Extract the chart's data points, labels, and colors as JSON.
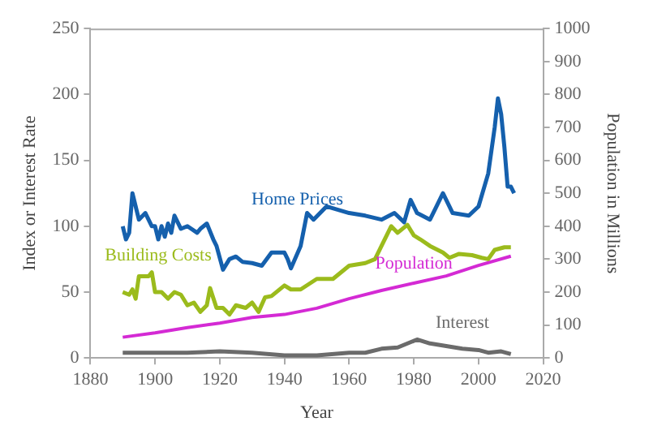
{
  "chart_data": {
    "type": "line",
    "xlabel": "Year",
    "ylabel": "Index or Interest Rate",
    "y2label": "Population in Millions",
    "xlim": [
      1880,
      2020
    ],
    "xticks": [
      1880,
      1900,
      1920,
      1940,
      1960,
      1980,
      2000,
      2020
    ],
    "ylim": [
      0,
      250
    ],
    "yticks": [
      0,
      50,
      100,
      150,
      200,
      250
    ],
    "y2lim": [
      0,
      1000
    ],
    "y2ticks": [
      0,
      100,
      200,
      300,
      400,
      500,
      600,
      700,
      800,
      900,
      1000
    ],
    "grid": false,
    "legend": false,
    "marker": "none",
    "line_style": "solid",
    "series": [
      {
        "name": "Home Prices",
        "color": "#1560ad",
        "x": [
          1890,
          1891,
          1892,
          1893,
          1894,
          1895,
          1897,
          1899,
          1900,
          1901,
          1902,
          1903,
          1904,
          1905,
          1906,
          1908,
          1910,
          1913,
          1914,
          1916,
          1918,
          1919,
          1921,
          1923,
          1925,
          1927,
          1930,
          1933,
          1936,
          1940,
          1941,
          1942,
          1945,
          1947,
          1949,
          1953,
          1960,
          1965,
          1970,
          1974,
          1977,
          1979,
          1981,
          1985,
          1989,
          1992,
          1997,
          2000,
          2003,
          2005,
          2006,
          2007,
          2008,
          2009,
          2010,
          2011
        ],
        "values": [
          100,
          90,
          95,
          125,
          115,
          105,
          110,
          100,
          100,
          90,
          100,
          92,
          102,
          95,
          108,
          98,
          100,
          95,
          98,
          102,
          90,
          85,
          67,
          75,
          77,
          73,
          72,
          70,
          80,
          80,
          75,
          68,
          85,
          110,
          105,
          115,
          110,
          108,
          105,
          110,
          103,
          120,
          110,
          105,
          125,
          110,
          108,
          115,
          140,
          175,
          197,
          185,
          160,
          130,
          130,
          125
        ]
      },
      {
        "name": "Building Costs",
        "color": "#9bbb1c",
        "x": [
          1890,
          1892,
          1893,
          1894,
          1895,
          1898,
          1899,
          1900,
          1902,
          1904,
          1906,
          1908,
          1910,
          1912,
          1914,
          1916,
          1917,
          1919,
          1921,
          1923,
          1925,
          1928,
          1930,
          1932,
          1934,
          1936,
          1940,
          1942,
          1945,
          1950,
          1955,
          1960,
          1965,
          1968,
          1970,
          1973,
          1975,
          1978,
          1980,
          1982,
          1985,
          1989,
          1991,
          1994,
          1998,
          2001,
          2003,
          2005,
          2008,
          2010
        ],
        "values": [
          50,
          48,
          52,
          45,
          62,
          62,
          65,
          50,
          50,
          45,
          50,
          48,
          40,
          42,
          35,
          40,
          53,
          38,
          38,
          33,
          40,
          38,
          42,
          35,
          46,
          47,
          55,
          52,
          52,
          60,
          60,
          70,
          72,
          75,
          85,
          100,
          95,
          101,
          93,
          90,
          85,
          80,
          76,
          79,
          78,
          76,
          75,
          82,
          84,
          84
        ]
      },
      {
        "name": "Population",
        "color": "#d42ad4",
        "axis": "y2",
        "x": [
          1890,
          1900,
          1910,
          1920,
          1930,
          1940,
          1950,
          1960,
          1970,
          1980,
          1990,
          2000,
          2010
        ],
        "values": [
          63,
          76,
          92,
          106,
          123,
          132,
          151,
          180,
          205,
          227,
          249,
          281,
          309
        ]
      },
      {
        "name": "Interest",
        "color": "#6b6b6b",
        "x": [
          1890,
          1900,
          1910,
          1920,
          1930,
          1940,
          1950,
          1960,
          1965,
          1970,
          1975,
          1981,
          1985,
          1990,
          1995,
          2000,
          2003,
          2007,
          2010
        ],
        "values": [
          4,
          4,
          4,
          5,
          4,
          2,
          2,
          4,
          4,
          7,
          8,
          14,
          11,
          9,
          7,
          6,
          4,
          5,
          3
        ]
      }
    ]
  }
}
